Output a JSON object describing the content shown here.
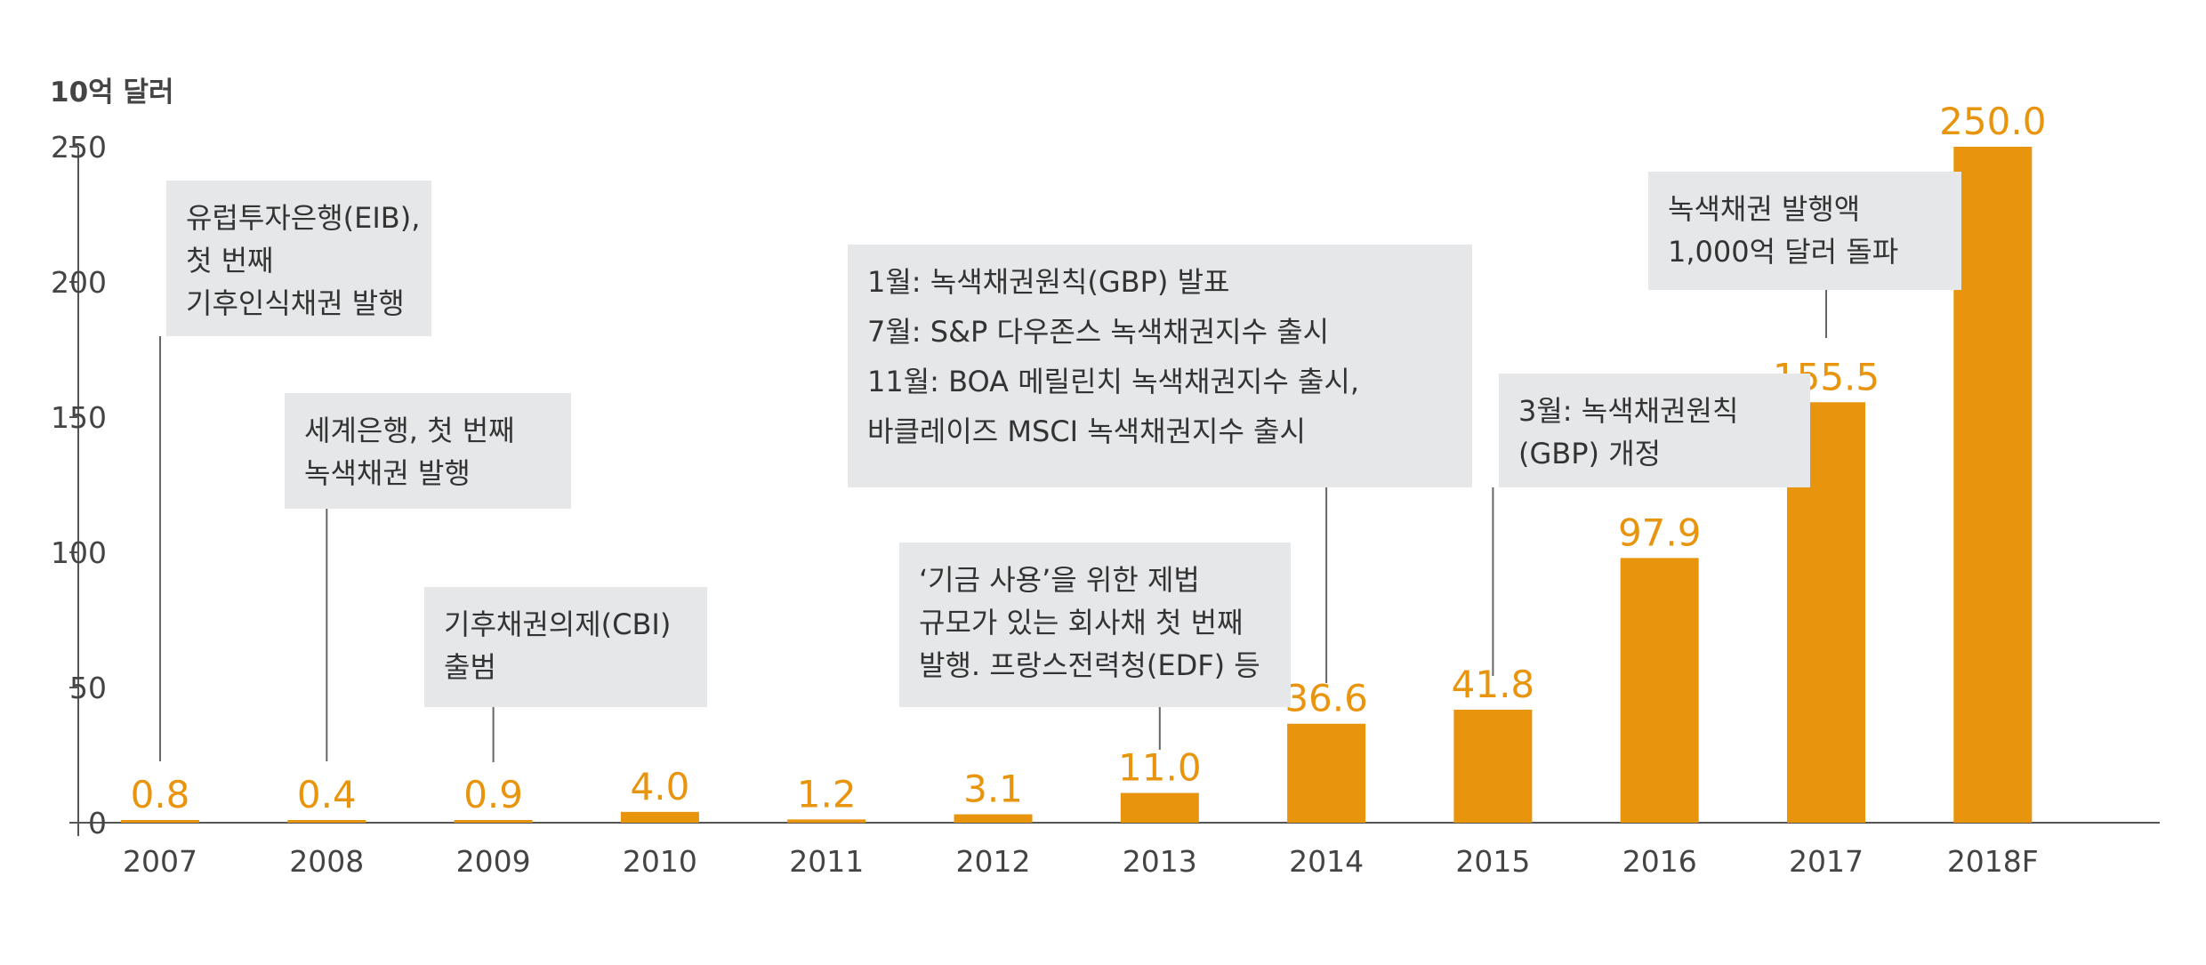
{
  "chart_data": {
    "type": "bar",
    "unit_label": "10억 달러",
    "categories": [
      "2007",
      "2008",
      "2009",
      "2010",
      "2011",
      "2012",
      "2013",
      "2014",
      "2015",
      "2016",
      "2017",
      "2018F"
    ],
    "values": [
      0.8,
      0.4,
      0.9,
      4.0,
      1.2,
      3.1,
      11.0,
      36.6,
      41.8,
      97.9,
      155.5,
      250.0
    ],
    "value_labels": [
      "0.8",
      "0.4",
      "0.9",
      "4.0",
      "1.2",
      "3.1",
      "11.0",
      "36.6",
      "41.8",
      "97.9",
      "155.5",
      "250.0"
    ],
    "ylim": [
      0,
      250
    ],
    "yticks": [
      0,
      50,
      100,
      150,
      200,
      250
    ],
    "bar_color": "#e8940c",
    "label_color": "#e8940c",
    "grid": false,
    "annotations": [
      {
        "category": "2007",
        "lines": [
          "유럽투자은행(EIB),",
          "첫 번째",
          "기후인식채권 발행"
        ]
      },
      {
        "category": "2008",
        "lines": [
          "세계은행, 첫 번째",
          "녹색채권 발행"
        ]
      },
      {
        "category": "2009",
        "lines": [
          "기후채권의제(CBI)",
          "출범"
        ]
      },
      {
        "category": "2013",
        "lines": [
          "‘기금 사용’을 위한 제법",
          "규모가 있는 회사채 첫 번째",
          "발행. 프랑스전력청(EDF) 등"
        ]
      },
      {
        "category": "2014",
        "lines": [
          "1월: 녹색채권원칙(GBP) 발표",
          "7월: S&P 다우존스 녹색채권지수 출시",
          "11월: BOA 메릴린치 녹색채권지수 출시,",
          "바클레이즈 MSCI 녹색채권지수 출시"
        ]
      },
      {
        "category": "2015",
        "lines": [
          "3월: 녹색채권원칙",
          "(GBP) 개정"
        ]
      },
      {
        "category": "2017",
        "lines": [
          "녹색채권 발행액",
          "1,000억 달러 돌파"
        ]
      }
    ]
  }
}
